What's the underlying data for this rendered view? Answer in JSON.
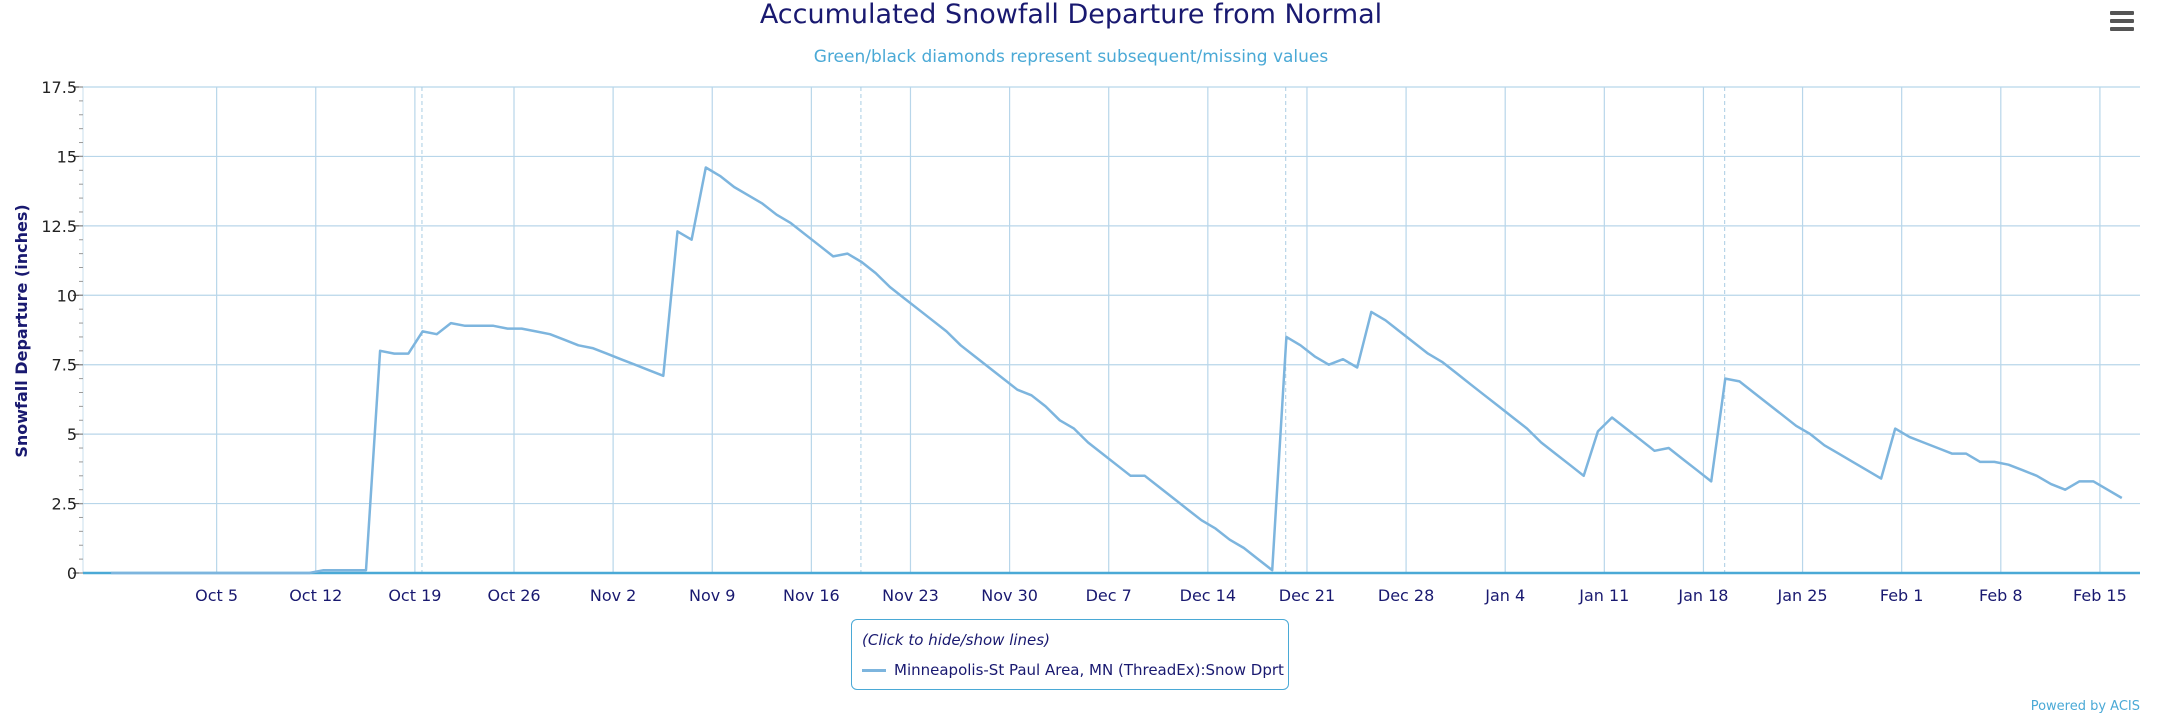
{
  "chart_data": {
    "type": "line",
    "title": "Accumulated Snowfall Departure from Normal",
    "subtitle": "Green/black diamonds represent subsequent/missing values",
    "ylabel": "Snowfall Departure (inches)",
    "xlabel": "",
    "ylim": [
      0,
      17.5
    ],
    "y_ticks": [
      "0",
      "2.5",
      "5",
      "7.5",
      "10",
      "12.5",
      "15",
      "17.5"
    ],
    "x_ticks": [
      "Oct 5",
      "Oct 12",
      "Oct 19",
      "Oct 26",
      "Nov 2",
      "Nov 9",
      "Nov 16",
      "Nov 23",
      "Nov 30",
      "Dec 7",
      "Dec 14",
      "Dec 21",
      "Dec 28",
      "Jan 4",
      "Jan 11",
      "Jan 18",
      "Jan 25",
      "Feb 1",
      "Feb 8",
      "Feb 15"
    ],
    "grid": true,
    "legend_position": "bottom-center",
    "series": [
      {
        "name": "Minneapolis-St Paul Area, MN (ThreadEx):Snow Dprt",
        "color": "#7db5de",
        "x_start": "Oct 1",
        "values": [
          0,
          0,
          0,
          0,
          0,
          0,
          0,
          0,
          0,
          0,
          0,
          0,
          0,
          0,
          0,
          0.1,
          0.1,
          0.1,
          0.1,
          8.0,
          7.9,
          7.9,
          8.7,
          8.6,
          9.0,
          8.9,
          8.9,
          8.9,
          8.8,
          8.8,
          8.7,
          8.6,
          8.4,
          8.2,
          8.1,
          7.9,
          7.7,
          7.5,
          7.3,
          7.1,
          12.3,
          12.0,
          14.6,
          14.3,
          13.9,
          13.6,
          13.3,
          12.9,
          12.6,
          12.2,
          11.8,
          11.4,
          11.5,
          11.2,
          10.8,
          10.3,
          9.9,
          9.5,
          9.1,
          8.7,
          8.2,
          7.8,
          7.4,
          7.0,
          6.6,
          6.4,
          6.0,
          5.5,
          5.2,
          4.7,
          4.3,
          3.9,
          3.5,
          3.5,
          3.1,
          2.7,
          2.3,
          1.9,
          1.6,
          1.2,
          0.9,
          0.5,
          0.1,
          8.5,
          8.2,
          7.8,
          7.5,
          7.7,
          7.4,
          9.4,
          9.1,
          8.7,
          8.3,
          7.9,
          7.6,
          7.2,
          6.8,
          6.4,
          6.0,
          5.6,
          5.2,
          4.7,
          4.3,
          3.9,
          3.5,
          5.1,
          5.6,
          5.2,
          4.8,
          4.4,
          4.5,
          4.1,
          3.7,
          3.3,
          7.0,
          6.9,
          6.5,
          6.1,
          5.7,
          5.3,
          5.0,
          4.6,
          4.3,
          4.0,
          3.7,
          3.4,
          5.2,
          4.9,
          4.7,
          4.5,
          4.3,
          4.3,
          4.0,
          4.0,
          3.9,
          3.7,
          3.5,
          3.2,
          3.0,
          3.3,
          3.3,
          3.0,
          2.7
        ]
      }
    ],
    "legend_hint": "(Click to hide/show lines)",
    "credit": "Powered by ACIS"
  }
}
